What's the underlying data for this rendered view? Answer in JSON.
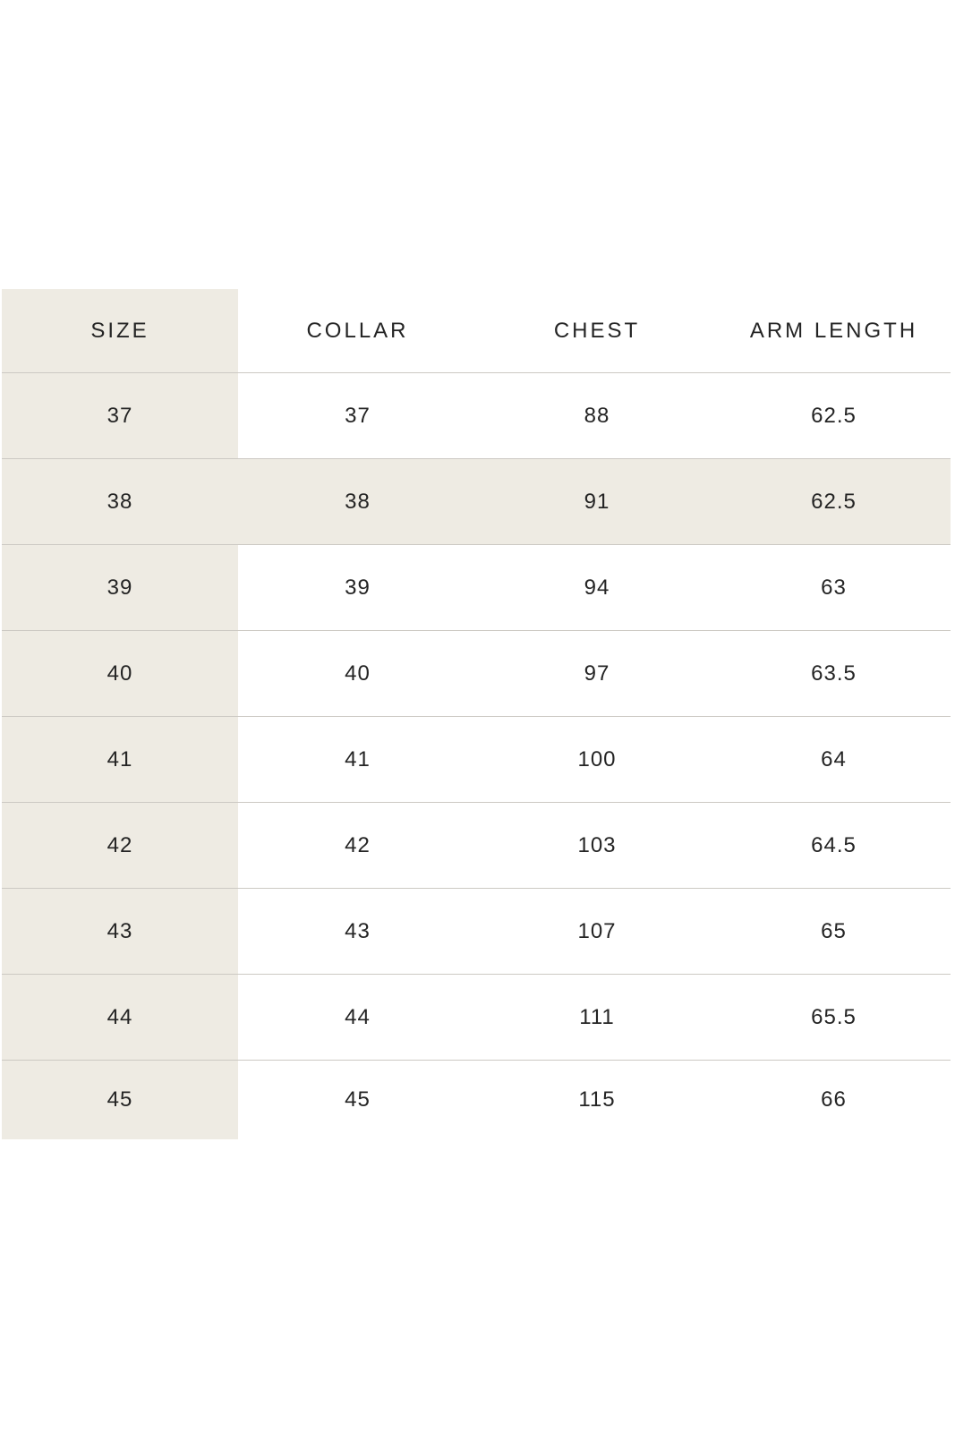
{
  "page": {
    "background": "#ffffff"
  },
  "table": {
    "columns": [
      "SIZE",
      "COLLAR",
      "CHEST",
      "ARM LENGTH"
    ],
    "rows": [
      [
        "37",
        "37",
        "88",
        "62.5"
      ],
      [
        "38",
        "38",
        "91",
        "62.5"
      ],
      [
        "39",
        "39",
        "94",
        "63"
      ],
      [
        "40",
        "40",
        "97",
        "63.5"
      ],
      [
        "41",
        "41",
        "100",
        "64"
      ],
      [
        "42",
        "42",
        "103",
        "64.5"
      ],
      [
        "43",
        "43",
        "107",
        "65"
      ],
      [
        "44",
        "44",
        "111",
        "65.5"
      ],
      [
        "45",
        "45",
        "115",
        "66"
      ]
    ],
    "highlighted_row_index": 1,
    "colors": {
      "page_bg": "#ffffff",
      "first_column_bg": "#eeebe3",
      "highlight_row_bg": "#eeebe3",
      "row_divider": "#ccc9c3",
      "text": "#242424"
    }
  }
}
